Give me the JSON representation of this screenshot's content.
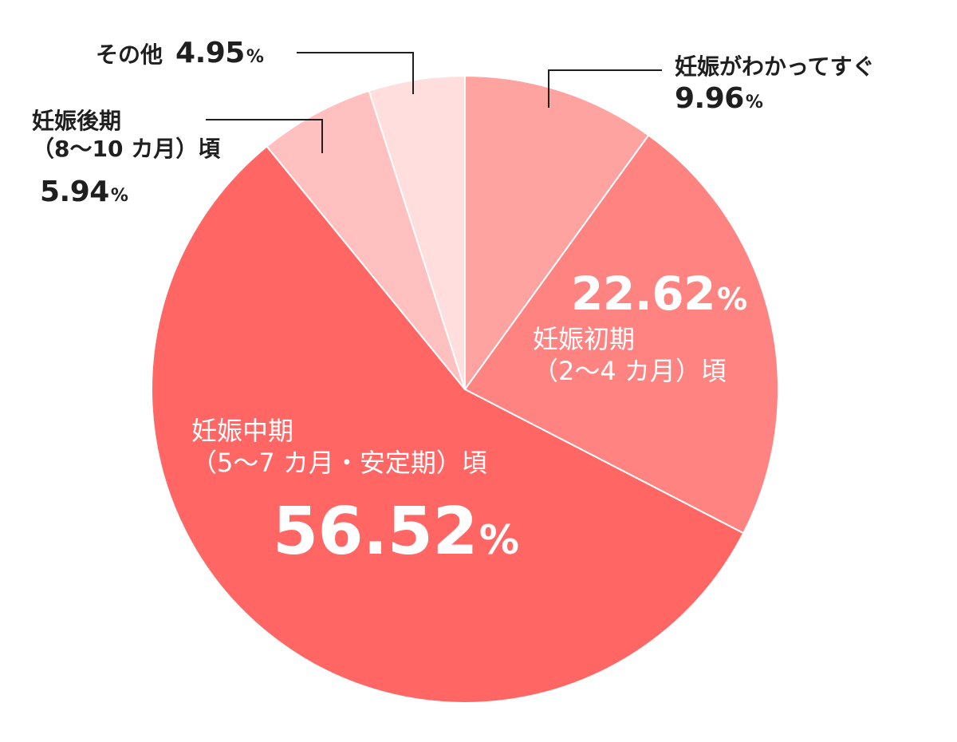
{
  "chart_data": {
    "type": "pie",
    "start": "12 o'clock",
    "direction": "clockwise",
    "slices": [
      {
        "key": "s1",
        "label": "妊娠がわかってすぐ",
        "value": 9.96,
        "value_text": "9.96",
        "unit": "%",
        "color": "#ffa3a1"
      },
      {
        "key": "s2",
        "label": "妊娠初期",
        "label2": "（2〜4 カ月）頃",
        "value": 22.62,
        "value_text": "22.62",
        "unit": "%",
        "color": "#ff8381"
      },
      {
        "key": "s3",
        "label": "妊娠中期",
        "label2": "（5〜7 カ月・安定期）頃",
        "value": 56.52,
        "value_text": "56.52",
        "unit": "%",
        "color": "#ff6664"
      },
      {
        "key": "s4",
        "label": "妊娠後期",
        "label2": "（8〜10 カ月）頃",
        "value": 5.94,
        "value_text": "5.94",
        "unit": "%",
        "color": "#ffc0bf"
      },
      {
        "key": "s5",
        "label": "その他",
        "value": 4.95,
        "value_text": "4.95",
        "unit": "%",
        "color": "#ffdedd"
      }
    ]
  }
}
